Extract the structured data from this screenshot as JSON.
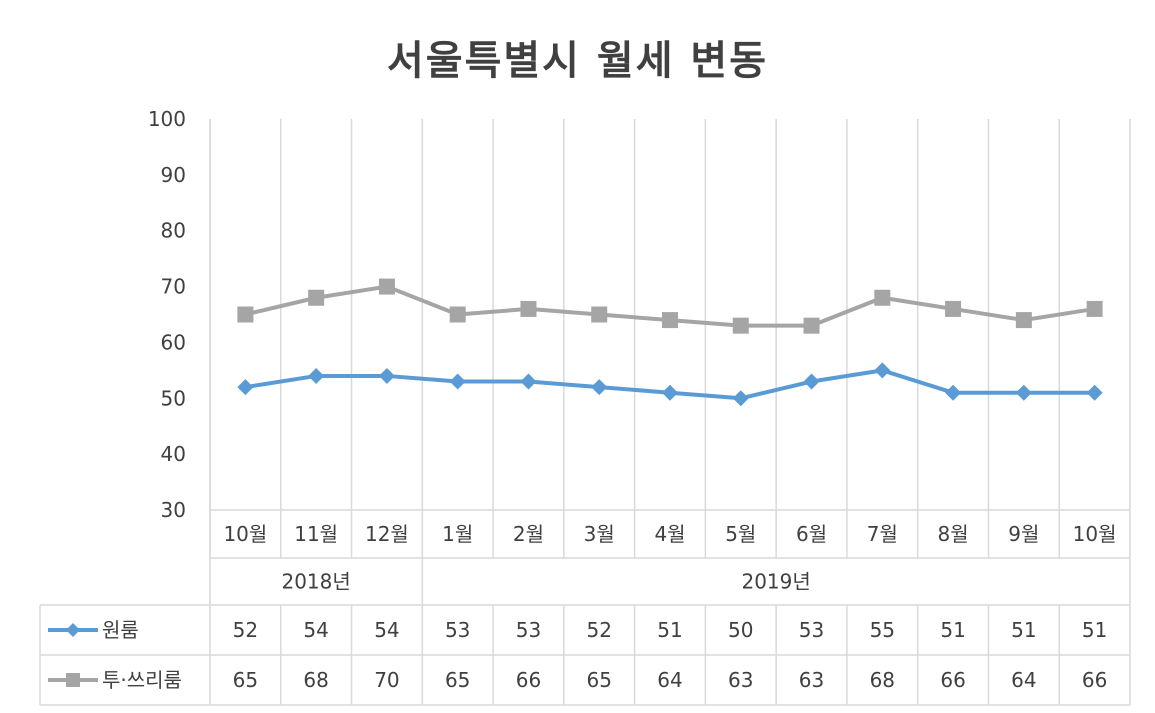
{
  "chart_data": {
    "type": "line",
    "title": "서울특별시 월세 변동",
    "categories": [
      "10월",
      "11월",
      "12월",
      "1월",
      "2월",
      "3월",
      "4월",
      "5월",
      "6월",
      "7월",
      "8월",
      "9월",
      "10월"
    ],
    "year_groups": [
      {
        "label": "2018년",
        "count": 3
      },
      {
        "label": "2019년",
        "count": 10
      }
    ],
    "ylim": [
      30,
      100
    ],
    "yticks": [
      30,
      40,
      50,
      60,
      70,
      80,
      90,
      100
    ],
    "grid": "vertical",
    "legend": "data-table",
    "series": [
      {
        "name": "원룸",
        "color": "#5B9BD5",
        "marker": "diamond",
        "values": [
          52,
          54,
          54,
          53,
          53,
          52,
          51,
          50,
          53,
          55,
          51,
          51,
          51
        ]
      },
      {
        "name": "투·쓰리룸",
        "color": "#A5A5A5",
        "marker": "square",
        "values": [
          65,
          68,
          70,
          65,
          66,
          65,
          64,
          63,
          63,
          68,
          66,
          64,
          66
        ]
      }
    ]
  }
}
